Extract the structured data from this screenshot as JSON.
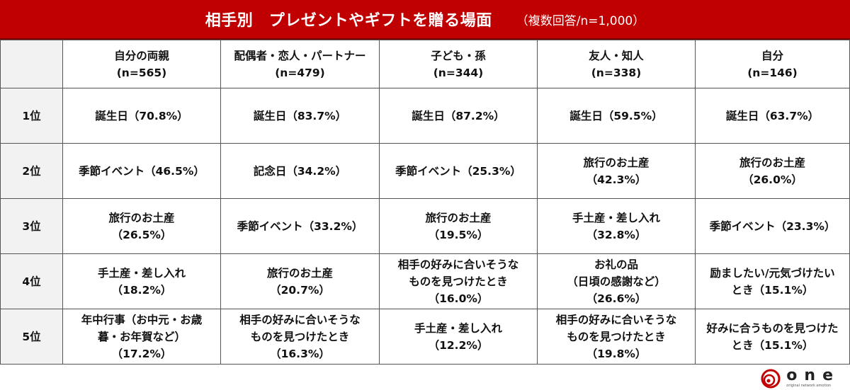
{
  "title": {
    "main": "相手別　プレゼントやギフトを贈る場面",
    "sub": "（複数回答/n=1,000）"
  },
  "columns": [
    {
      "name": "自分の両親",
      "n": "(n=565)"
    },
    {
      "name": "配偶者・恋人・パートナー",
      "n": "(n=479)"
    },
    {
      "name": "子ども・孫",
      "n": "(n=344)"
    },
    {
      "name": "友人・知人",
      "n": "(n=338)"
    },
    {
      "name": "自分",
      "n": "(n=146)"
    }
  ],
  "rows": [
    {
      "rank": "1位",
      "cells": [
        [
          "誕生日（70.8%）"
        ],
        [
          "誕生日（83.7%）"
        ],
        [
          "誕生日（87.2%）"
        ],
        [
          "誕生日（59.5%）"
        ],
        [
          "誕生日（63.7%）"
        ]
      ]
    },
    {
      "rank": "2位",
      "cells": [
        [
          "季節イベント（46.5%）"
        ],
        [
          "記念日（34.2%）"
        ],
        [
          "季節イベント（25.3%）"
        ],
        [
          "旅行のお土産",
          "（42.3%）"
        ],
        [
          "旅行のお土産",
          "（26.0%）"
        ]
      ]
    },
    {
      "rank": "3位",
      "cells": [
        [
          "旅行のお土産",
          "（26.5%）"
        ],
        [
          "季節イベント（33.2%）"
        ],
        [
          "旅行のお土産",
          "（19.5%）"
        ],
        [
          "手土産・差し入れ",
          "（32.8%）"
        ],
        [
          "季節イベント（23.3%）"
        ]
      ]
    },
    {
      "rank": "4位",
      "cells": [
        [
          "手土産・差し入れ",
          "（18.2%）"
        ],
        [
          "旅行のお土産",
          "（20.7%）"
        ],
        [
          "相手の好みに合いそうな",
          "ものを見つけたとき",
          "（16.0%）"
        ],
        [
          "お礼の品",
          "（日頃の感謝など）",
          "（26.6%）"
        ],
        [
          "励ましたい/元気づけたい",
          "とき（15.1%）"
        ]
      ]
    },
    {
      "rank": "5位",
      "cells": [
        [
          "年中行事（お中元・お歳",
          "暮・お年賀など）",
          "（17.2%）"
        ],
        [
          "相手の好みに合いそうな",
          "ものを見つけたとき",
          "（16.3%）"
        ],
        [
          "手土産・差し入れ",
          "（12.2%）"
        ],
        [
          "相手の好みに合いそうな",
          "ものを見つけたとき",
          "（19.8%）"
        ],
        [
          "好みに合うものを見つけた",
          "とき（15.1%）"
        ]
      ]
    }
  ],
  "logo": {
    "text": "one",
    "tagline": "original network emotion"
  },
  "colors": {
    "header": "#c00000",
    "rank_bg": "#f2f2f2"
  }
}
